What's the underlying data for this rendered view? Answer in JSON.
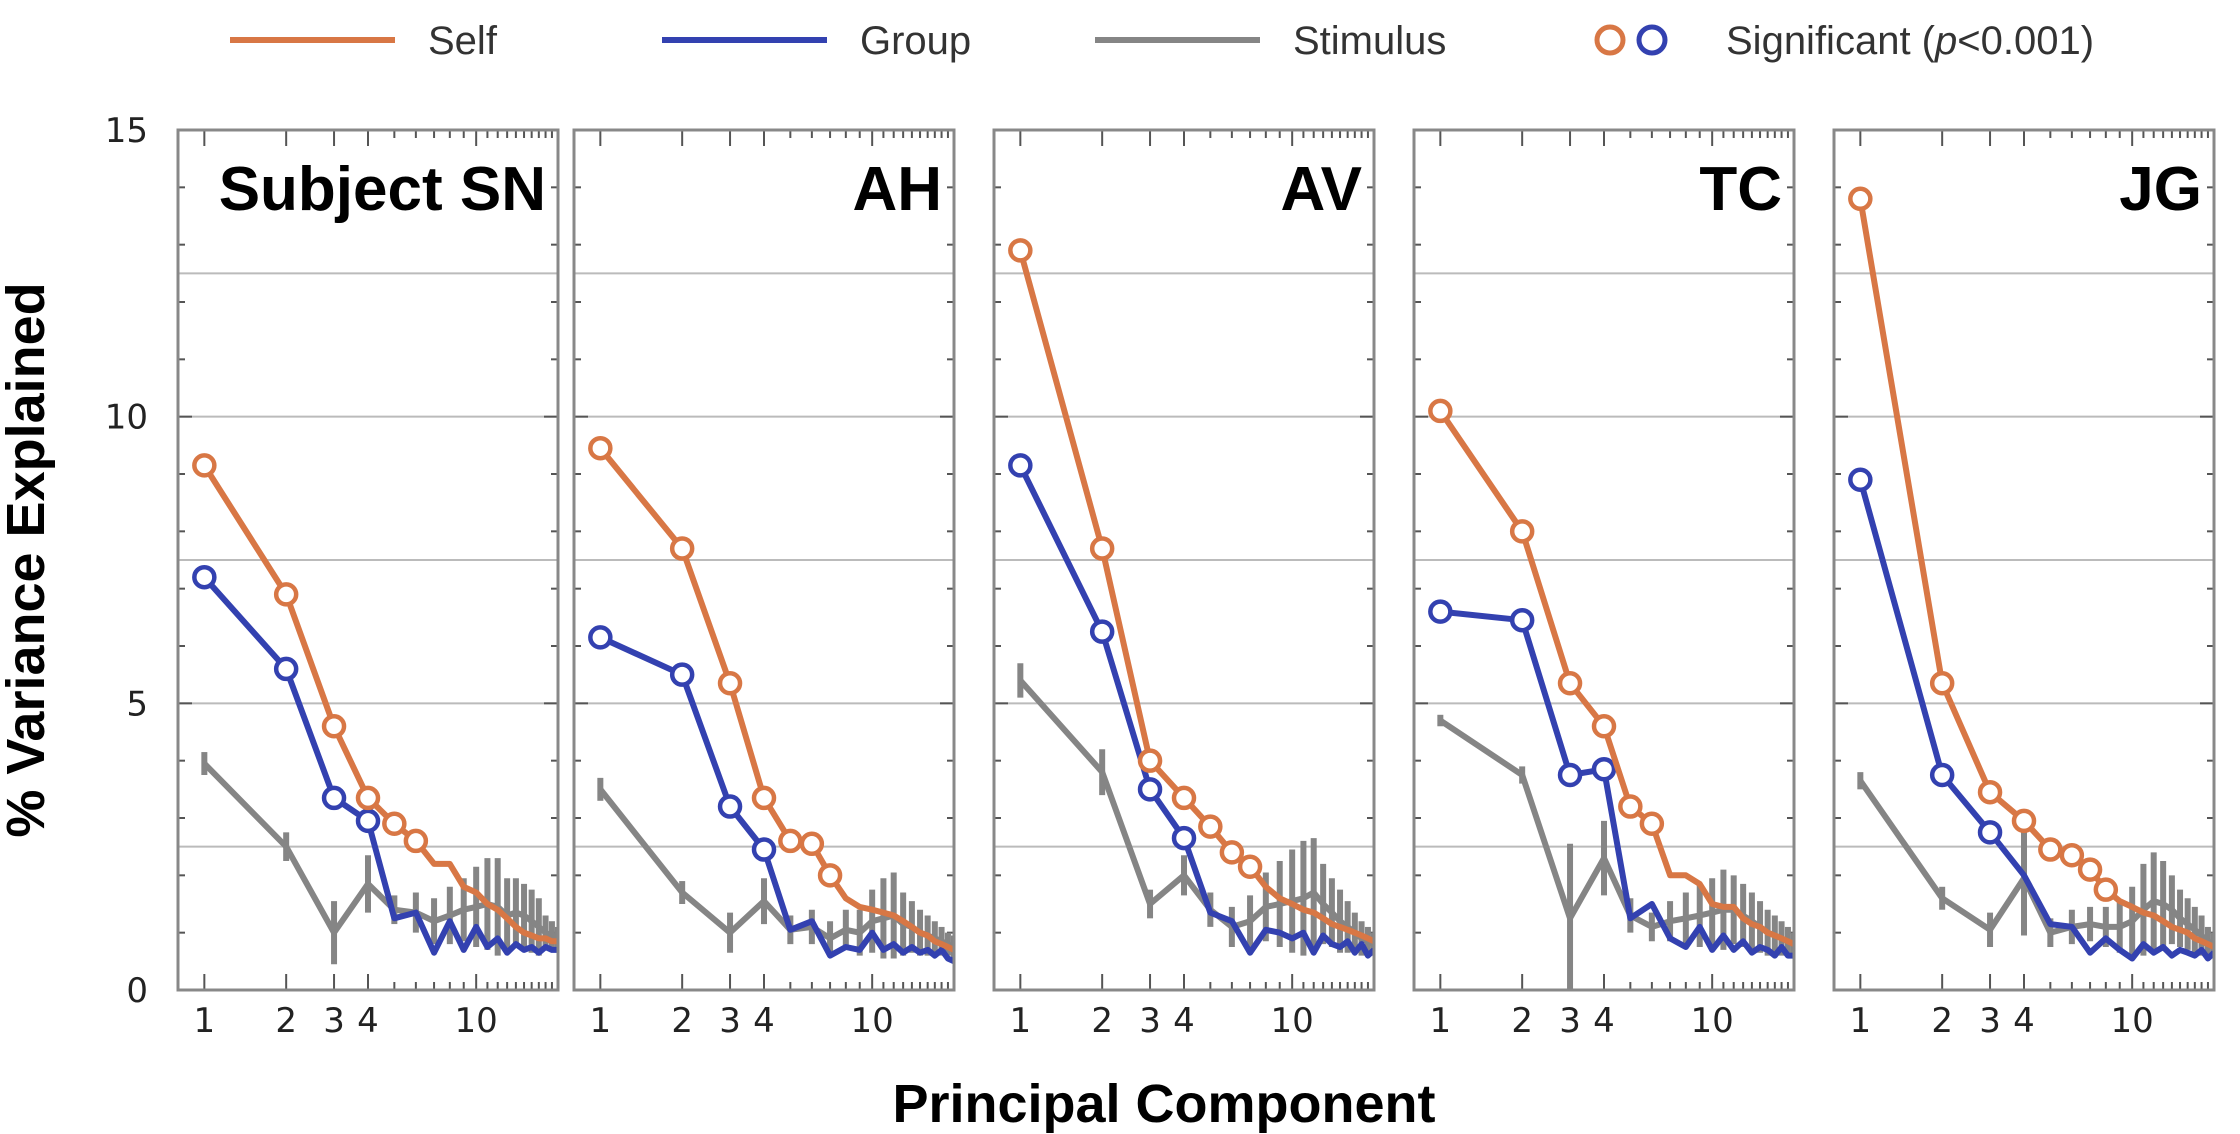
{
  "chart_data": {
    "type": "line",
    "layout": "five panels in a row sharing y-axis",
    "xlabel": "Principal Component",
    "ylabel": "% Variance Explained",
    "ylim": [
      0,
      15
    ],
    "y_ticks": [
      0,
      5,
      10,
      15
    ],
    "y_gridlines": [
      2.5,
      5,
      7.5,
      10,
      12.5
    ],
    "x_scale": "log",
    "xlim": [
      0.8,
      20
    ],
    "x_ticks": [
      1,
      2,
      3,
      4,
      10
    ],
    "x_tick_labels": [
      "1",
      "2",
      "3",
      "4",
      "10"
    ],
    "colors": {
      "self": "#D87745",
      "group": "#3341B0",
      "stimulus": "#858585",
      "grid": "#bbbbbb",
      "frame": "#888888"
    },
    "legend": {
      "placement": "top",
      "entries": [
        {
          "key": "self",
          "label": "Self"
        },
        {
          "key": "group",
          "label": "Group"
        },
        {
          "key": "stimulus",
          "label": "Stimulus"
        },
        {
          "key": "significant",
          "label_prefix": "Significant (",
          "label_italic": "p",
          "label_suffix": "<0.001)"
        }
      ]
    },
    "panels": [
      {
        "title": "Subject SN",
        "series": [
          {
            "name": "Self",
            "x": [
              1,
              2,
              3,
              4,
              5,
              6,
              7,
              8,
              9,
              10,
              11,
              12,
              13,
              14,
              15,
              16,
              17,
              18,
              19,
              20
            ],
            "y": [
              9.15,
              6.9,
              4.6,
              3.35,
              2.9,
              2.6,
              2.2,
              2.2,
              1.8,
              1.7,
              1.5,
              1.4,
              1.25,
              1.1,
              1.0,
              0.95,
              0.9,
              0.9,
              0.85,
              0.85
            ],
            "significant_markers": 6
          },
          {
            "name": "Group",
            "x": [
              1,
              2,
              3,
              4,
              5,
              6,
              7,
              8,
              9,
              10,
              11,
              12,
              13,
              14,
              15,
              16,
              17,
              18,
              19,
              20
            ],
            "y": [
              7.2,
              5.6,
              3.35,
              2.95,
              1.25,
              1.35,
              0.65,
              1.2,
              0.7,
              1.1,
              0.75,
              0.9,
              0.65,
              0.8,
              0.7,
              0.75,
              0.65,
              0.75,
              0.7,
              0.7
            ],
            "significant_markers": 4
          },
          {
            "name": "Stimulus",
            "x": [
              1,
              2,
              3,
              4,
              5,
              6,
              7,
              8,
              9,
              10,
              11,
              12,
              13,
              14,
              15,
              16,
              17,
              18,
              19,
              20
            ],
            "y": [
              3.95,
              2.5,
              1.0,
              1.85,
              1.4,
              1.35,
              1.2,
              1.3,
              1.4,
              1.45,
              1.5,
              1.45,
              1.3,
              1.35,
              1.3,
              1.2,
              1.1,
              1.0,
              0.95,
              0.9
            ],
            "err": [
              0.2,
              0.25,
              0.55,
              0.5,
              0.25,
              0.35,
              0.4,
              0.5,
              0.55,
              0.7,
              0.8,
              0.85,
              0.65,
              0.6,
              0.55,
              0.55,
              0.5,
              0.3,
              0.25,
              0.2
            ]
          }
        ]
      },
      {
        "title": "AH",
        "series": [
          {
            "name": "Self",
            "x": [
              1,
              2,
              3,
              4,
              5,
              6,
              7,
              8,
              9,
              10,
              11,
              12,
              13,
              14,
              15,
              16,
              17,
              18,
              19,
              20
            ],
            "y": [
              9.45,
              7.7,
              5.35,
              3.35,
              2.6,
              2.55,
              2.0,
              1.6,
              1.45,
              1.4,
              1.35,
              1.3,
              1.2,
              1.1,
              1.0,
              0.95,
              0.85,
              0.8,
              0.75,
              0.7
            ],
            "significant_markers": 7
          },
          {
            "name": "Group",
            "x": [
              1,
              2,
              3,
              4,
              5,
              6,
              7,
              8,
              9,
              10,
              11,
              12,
              13,
              14,
              15,
              16,
              17,
              18,
              19,
              20
            ],
            "y": [
              6.15,
              5.5,
              3.2,
              2.45,
              1.05,
              1.2,
              0.6,
              0.75,
              0.7,
              1.0,
              0.7,
              0.8,
              0.65,
              0.75,
              0.65,
              0.7,
              0.6,
              0.7,
              0.55,
              0.5
            ],
            "significant_markers": 4
          },
          {
            "name": "Stimulus",
            "x": [
              1,
              2,
              3,
              4,
              5,
              6,
              7,
              8,
              9,
              10,
              11,
              12,
              13,
              14,
              15,
              16,
              17,
              18,
              19,
              20
            ],
            "y": [
              3.5,
              1.7,
              1.0,
              1.55,
              1.05,
              1.1,
              0.9,
              1.05,
              1.0,
              1.2,
              1.25,
              1.3,
              1.15,
              1.1,
              1.0,
              0.95,
              0.9,
              0.85,
              0.8,
              0.75
            ],
            "err": [
              0.2,
              0.2,
              0.35,
              0.4,
              0.25,
              0.3,
              0.3,
              0.35,
              0.4,
              0.55,
              0.7,
              0.75,
              0.55,
              0.45,
              0.4,
              0.35,
              0.3,
              0.25,
              0.2,
              0.2
            ]
          }
        ]
      },
      {
        "title": "AV",
        "series": [
          {
            "name": "Self",
            "x": [
              1,
              2,
              3,
              4,
              5,
              6,
              7,
              8,
              9,
              10,
              11,
              12,
              13,
              14,
              15,
              16,
              17,
              18,
              19,
              20
            ],
            "y": [
              12.9,
              7.7,
              4.0,
              3.35,
              2.85,
              2.4,
              2.15,
              1.8,
              1.6,
              1.5,
              1.4,
              1.35,
              1.25,
              1.15,
              1.1,
              1.05,
              1.0,
              0.95,
              0.9,
              0.85
            ],
            "significant_markers": 7
          },
          {
            "name": "Group",
            "x": [
              1,
              2,
              3,
              4,
              5,
              6,
              7,
              8,
              9,
              10,
              11,
              12,
              13,
              14,
              15,
              16,
              17,
              18,
              19,
              20
            ],
            "y": [
              9.15,
              6.25,
              3.5,
              2.65,
              1.35,
              1.2,
              0.65,
              1.05,
              1.0,
              0.9,
              1.0,
              0.65,
              0.95,
              0.8,
              0.75,
              0.85,
              0.65,
              0.8,
              0.6,
              0.7
            ],
            "significant_markers": 4
          },
          {
            "name": "Stimulus",
            "x": [
              1,
              2,
              3,
              4,
              5,
              6,
              7,
              8,
              9,
              10,
              11,
              12,
              13,
              14,
              15,
              16,
              17,
              18,
              19,
              20
            ],
            "y": [
              5.4,
              3.8,
              1.5,
              2.0,
              1.4,
              1.1,
              1.2,
              1.45,
              1.5,
              1.55,
              1.6,
              1.7,
              1.5,
              1.35,
              1.2,
              1.1,
              1.0,
              0.9,
              0.85,
              0.8
            ],
            "err": [
              0.3,
              0.4,
              0.25,
              0.35,
              0.3,
              0.35,
              0.45,
              0.6,
              0.75,
              0.9,
              1.0,
              0.95,
              0.7,
              0.6,
              0.55,
              0.45,
              0.35,
              0.3,
              0.25,
              0.2
            ]
          }
        ]
      },
      {
        "title": "TC",
        "series": [
          {
            "name": "Self",
            "x": [
              1,
              2,
              3,
              4,
              5,
              6,
              7,
              8,
              9,
              10,
              11,
              12,
              13,
              14,
              15,
              16,
              17,
              18,
              19,
              20
            ],
            "y": [
              10.1,
              8.0,
              5.35,
              4.6,
              3.2,
              2.9,
              2.0,
              2.0,
              1.85,
              1.5,
              1.45,
              1.45,
              1.25,
              1.15,
              1.1,
              1.0,
              0.95,
              0.9,
              0.85,
              0.8
            ],
            "significant_markers": 6
          },
          {
            "name": "Group",
            "x": [
              1,
              2,
              3,
              4,
              5,
              6,
              7,
              8,
              9,
              10,
              11,
              12,
              13,
              14,
              15,
              16,
              17,
              18,
              19,
              20
            ],
            "y": [
              6.6,
              6.45,
              3.75,
              3.85,
              1.25,
              1.5,
              0.9,
              0.75,
              1.1,
              0.7,
              0.95,
              0.7,
              0.85,
              0.65,
              0.75,
              0.7,
              0.6,
              0.75,
              0.6,
              0.6
            ],
            "significant_markers": 4
          },
          {
            "name": "Stimulus",
            "x": [
              1,
              2,
              3,
              4,
              5,
              6,
              7,
              8,
              9,
              10,
              11,
              12,
              13,
              14,
              15,
              16,
              17,
              18,
              19,
              20
            ],
            "y": [
              4.7,
              3.75,
              1.25,
              2.3,
              1.3,
              1.1,
              1.2,
              1.25,
              1.3,
              1.35,
              1.4,
              1.4,
              1.3,
              1.2,
              1.1,
              1.0,
              0.95,
              0.9,
              0.85,
              0.8
            ],
            "err": [
              0.1,
              0.15,
              1.3,
              0.65,
              0.3,
              0.25,
              0.35,
              0.45,
              0.55,
              0.6,
              0.7,
              0.6,
              0.55,
              0.5,
              0.45,
              0.4,
              0.35,
              0.3,
              0.25,
              0.2
            ]
          }
        ]
      },
      {
        "title": "JG",
        "series": [
          {
            "name": "Self",
            "x": [
              1,
              2,
              3,
              4,
              5,
              6,
              7,
              8,
              9,
              10,
              11,
              12,
              13,
              14,
              15,
              16,
              17,
              18,
              19,
              20
            ],
            "y": [
              13.8,
              5.35,
              3.45,
              2.95,
              2.45,
              2.35,
              2.1,
              1.75,
              1.55,
              1.45,
              1.35,
              1.3,
              1.2,
              1.1,
              1.05,
              1.0,
              0.9,
              0.85,
              0.8,
              0.75
            ],
            "significant_markers": 8
          },
          {
            "name": "Group",
            "x": [
              1,
              2,
              3,
              4,
              5,
              6,
              7,
              8,
              9,
              10,
              11,
              12,
              13,
              14,
              15,
              16,
              17,
              18,
              19,
              20
            ],
            "y": [
              8.9,
              3.75,
              2.75,
              2.0,
              1.15,
              1.1,
              0.65,
              0.9,
              0.7,
              0.55,
              0.8,
              0.65,
              0.75,
              0.6,
              0.7,
              0.65,
              0.6,
              0.7,
              0.55,
              0.65
            ],
            "significant_markers": 3
          },
          {
            "name": "Stimulus",
            "x": [
              1,
              2,
              3,
              4,
              5,
              6,
              7,
              8,
              9,
              10,
              11,
              12,
              13,
              14,
              15,
              16,
              17,
              18,
              19,
              20
            ],
            "y": [
              3.65,
              1.6,
              1.05,
              1.95,
              1.0,
              1.1,
              1.15,
              1.1,
              1.1,
              1.2,
              1.4,
              1.55,
              1.5,
              1.4,
              1.25,
              1.15,
              1.05,
              0.95,
              0.85,
              0.8
            ],
            "err": [
              0.15,
              0.2,
              0.3,
              1.0,
              0.25,
              0.3,
              0.3,
              0.35,
              0.45,
              0.6,
              0.8,
              0.85,
              0.75,
              0.6,
              0.5,
              0.45,
              0.4,
              0.35,
              0.25,
              0.2
            ]
          }
        ]
      }
    ]
  }
}
